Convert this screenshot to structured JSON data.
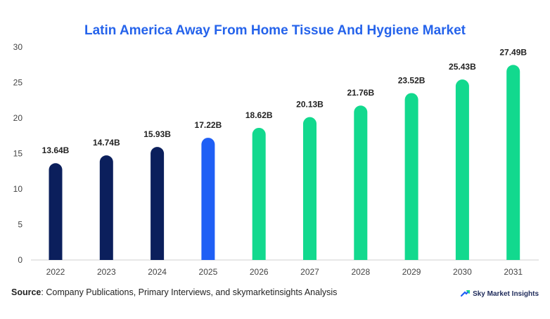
{
  "chart_data": {
    "type": "bar",
    "title": "Latin America Away From Home Tissue And Hygiene Market",
    "categories": [
      "2022",
      "2023",
      "2024",
      "2025",
      "2026",
      "2027",
      "2028",
      "2029",
      "2030",
      "2031"
    ],
    "values": [
      13.64,
      14.74,
      15.93,
      17.22,
      18.62,
      20.13,
      21.76,
      23.52,
      25.43,
      27.49
    ],
    "value_labels": [
      "13.64B",
      "14.74B",
      "15.93B",
      "17.22B",
      "18.62B",
      "20.13B",
      "21.76B",
      "23.52B",
      "25.43B",
      "27.49B"
    ],
    "yticks": [
      "0",
      "5",
      "10",
      "15",
      "20",
      "25",
      "30"
    ],
    "ylim": [
      0,
      30
    ],
    "grid": false,
    "legend": "none",
    "bar_colors": [
      "#0b1f5c",
      "#0b1f5c",
      "#0b1f5c",
      "#1f5ff5",
      "#12d98e",
      "#12d98e",
      "#12d98e",
      "#12d98e",
      "#12d98e",
      "#12d98e"
    ]
  },
  "source": {
    "label": "Source",
    "text": ": Company Publications, Primary Interviews, and skymarketinsights Analysis"
  },
  "brand": {
    "name": "Sky Market Insights",
    "icon": "sky-market-insights-logo-icon",
    "color": "#1f5ff5"
  }
}
